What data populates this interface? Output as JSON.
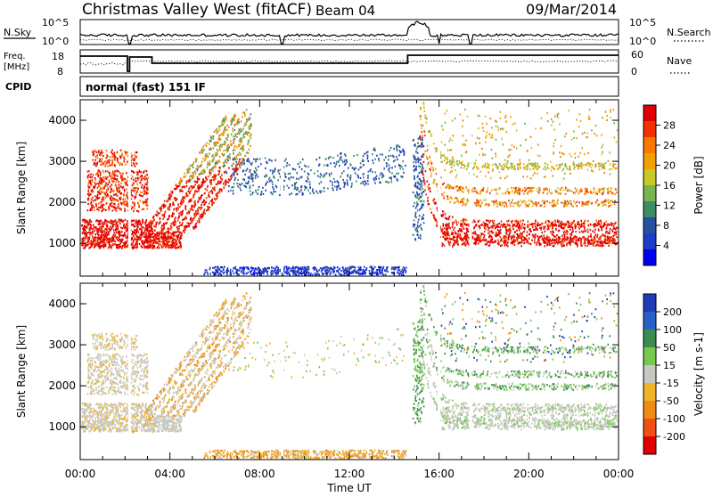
{
  "header": {
    "station": "Christmas Valley West (fitACF)",
    "beam": "Beam 04",
    "date": "09/Mar/2014"
  },
  "sky_panel": {
    "left_label": "N.Sky",
    "right_label": "N.Search",
    "left_ticks": [
      "10^5",
      "10^0"
    ],
    "right_ticks": [
      "10^5",
      "10^0"
    ]
  },
  "freq_panel": {
    "left_label_1": "Freq.",
    "left_label_2": "[MHz]",
    "right_label": "Nave",
    "left_ticks": [
      "18",
      "8"
    ],
    "right_ticks": [
      "60",
      "0"
    ]
  },
  "cpid_panel": {
    "label": "CPID",
    "text": "normal (fast) 151 IF"
  },
  "chart_data": [
    {
      "type": "heatmap",
      "name": "power",
      "ylabel": "Slant Range [km]",
      "yticks": [
        1000,
        2000,
        3000,
        4000
      ],
      "ylim": [
        200,
        4500
      ],
      "xlim": [
        0,
        24
      ],
      "colorbar_label": "Power [dB]",
      "colorbar_ticks": [
        "28",
        "24",
        "20",
        "16",
        "12",
        "8",
        "4"
      ],
      "colorbar_colors": [
        "#e00000",
        "#f23000",
        "#f87800",
        "#f0a000",
        "#c8c828",
        "#78b450",
        "#3c8c64",
        "#2850a0",
        "#1e3cc8",
        "#0000f0"
      ]
    },
    {
      "type": "heatmap",
      "name": "velocity",
      "ylabel": "Slant Range [km]",
      "yticks": [
        1000,
        2000,
        3000,
        4000
      ],
      "ylim": [
        200,
        4500
      ],
      "xlim": [
        0,
        24
      ],
      "xlabel": "Time UT",
      "xticks": [
        "00:00",
        "04:00",
        "08:00",
        "12:00",
        "16:00",
        "20:00",
        "00:00"
      ],
      "colorbar_label": "Velocity [m s-1]",
      "colorbar_ticks": [
        "200",
        "100",
        "50",
        "15",
        "-15",
        "-50",
        "-100",
        "-200"
      ],
      "colorbar_colors": [
        "#1e3cb4",
        "#2860c8",
        "#3c8c50",
        "#78c850",
        "#c8c8c0",
        "#f0b428",
        "#f08c14",
        "#f05014",
        "#e00000"
      ]
    }
  ]
}
